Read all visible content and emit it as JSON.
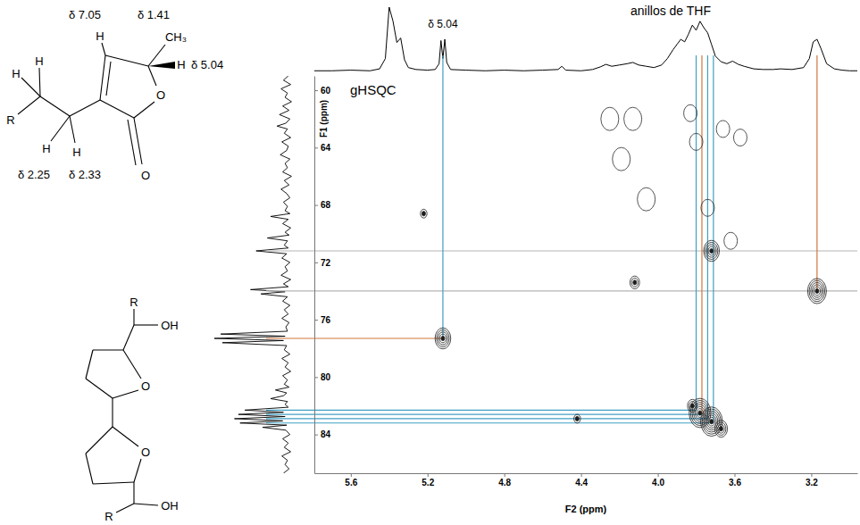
{
  "chart_data": {
    "type": "contour",
    "title": "gHSQC",
    "x_label": "F2 (ppm)",
    "y_label": "F1 (ppm)",
    "xlim": [
      5.79,
      2.96
    ],
    "xticks": [
      5.6,
      5.2,
      4.8,
      4.4,
      {
        "value": 4,
        "label": "4.0"
      },
      3.6,
      3.2
    ],
    "ylim": [
      59,
      86.7
    ],
    "yticks": [
      60,
      64,
      68,
      72,
      76,
      80,
      84
    ],
    "series": [
      {
        "x": [
          5.12,
          3.72,
          3.17,
          3.82,
          3.78,
          3.72,
          3.67,
          4.12,
          5.22,
          4.42
        ],
        "values": [
          77.3,
          71.2,
          74.0,
          82.0,
          82.5,
          83.1,
          83.6,
          73.4,
          68.6,
          82.9
        ],
        "sizes": [
          5,
          5,
          6,
          3,
          7,
          7,
          4,
          3,
          2,
          2
        ],
        "color": "#1e1e1e",
        "marker": "filled"
      },
      {
        "x": [
          4.25,
          4.13,
          4.19,
          4.06,
          3.83,
          3.8,
          3.66,
          3.74,
          3.62,
          3.57
        ],
        "values": [
          62.0,
          62.0,
          64.8,
          67.6,
          61.6,
          63.6,
          62.7,
          68.2,
          70.5,
          63.3
        ],
        "sizes": [
          2,
          2,
          2,
          2,
          1,
          1,
          1,
          1,
          1,
          1
        ],
        "color": "#2a2a2a",
        "marker": "open"
      }
    ],
    "spectrum_f2": {
      "x": [
        5.79,
        5.7,
        5.6,
        5.5,
        5.45,
        5.42,
        5.4,
        5.38,
        5.36,
        5.34,
        5.32,
        5.3,
        5.26,
        5.2,
        5.16,
        5.14,
        5.13,
        5.12,
        5.11,
        5.1,
        5.08,
        5.0,
        4.9,
        4.8,
        4.7,
        4.6,
        4.52,
        4.5,
        4.48,
        4.4,
        4.34,
        4.3,
        4.27,
        4.24,
        4.2,
        4.16,
        4.13,
        4.1,
        4.06,
        4.02,
        3.98,
        3.95,
        3.92,
        3.9,
        3.88,
        3.86,
        3.84,
        3.82,
        3.8,
        3.78,
        3.76,
        3.74,
        3.72,
        3.7,
        3.67,
        3.64,
        3.61,
        3.58,
        3.55,
        3.5,
        3.45,
        3.4,
        3.36,
        3.3,
        3.24,
        3.21,
        3.19,
        3.17,
        3.15,
        3.12,
        3.08,
        3.04,
        3.0,
        2.96
      ],
      "values": [
        1,
        1,
        2,
        1,
        4,
        20,
        100,
        78,
        45,
        52,
        18,
        6,
        3,
        2,
        3,
        12,
        48,
        20,
        50,
        14,
        3,
        2,
        1,
        2,
        1,
        2,
        3,
        8,
        2,
        1,
        3,
        7,
        11,
        8,
        10,
        12,
        14,
        10,
        8,
        6,
        10,
        20,
        34,
        42,
        50,
        46,
        58,
        72,
        64,
        78,
        68,
        60,
        42,
        24,
        15,
        12,
        16,
        11,
        8,
        4,
        3,
        3,
        4,
        3,
        6,
        20,
        46,
        50,
        36,
        12,
        4,
        2,
        1,
        1
      ],
      "ylim": [
        0,
        100
      ],
      "color": "#000000"
    },
    "spectrum_f1": {
      "y": [
        59.0,
        59.3,
        59.6,
        59.9,
        60.2,
        60.5,
        60.8,
        61.1,
        61.4,
        61.7,
        62.0,
        62.3,
        62.5,
        62.7,
        63.0,
        63.3,
        63.6,
        63.9,
        64.2,
        64.5,
        64.8,
        65.1,
        65.4,
        65.7,
        66.0,
        66.3,
        66.6,
        66.9,
        67.2,
        67.5,
        67.8,
        68.1,
        68.4,
        68.6,
        68.8,
        69.0,
        69.3,
        69.6,
        69.9,
        70.1,
        70.3,
        70.5,
        70.8,
        71.0,
        71.2,
        71.4,
        71.7,
        72.0,
        72.3,
        72.6,
        72.9,
        73.2,
        73.5,
        73.7,
        73.9,
        74.05,
        74.2,
        74.4,
        74.7,
        75.0,
        75.3,
        75.6,
        75.9,
        76.2,
        76.5,
        76.8,
        77.0,
        77.15,
        77.3,
        77.45,
        77.6,
        77.8,
        78.1,
        78.4,
        78.7,
        79.0,
        79.3,
        79.6,
        79.9,
        80.2,
        80.5,
        80.7,
        80.9,
        81.1,
        81.3,
        81.5,
        81.7,
        81.9,
        82.1,
        82.3,
        82.45,
        82.6,
        82.75,
        82.9,
        83.05,
        83.2,
        83.35,
        83.5,
        83.7,
        84.0,
        84.3,
        84.6,
        84.9,
        85.2,
        85.5,
        85.8,
        86.1,
        86.4,
        86.7
      ],
      "values": [
        8,
        14,
        5,
        17,
        9,
        12,
        4,
        15,
        7,
        19,
        6,
        11,
        22,
        9,
        13,
        5,
        16,
        8,
        10,
        18,
        6,
        12,
        9,
        15,
        4,
        13,
        7,
        17,
        10,
        6,
        14,
        9,
        12,
        6,
        30,
        8,
        15,
        5,
        12,
        7,
        34,
        9,
        13,
        8,
        48,
        10,
        16,
        6,
        12,
        9,
        17,
        5,
        14,
        8,
        55,
        12,
        42,
        9,
        15,
        6,
        13,
        8,
        16,
        7,
        11,
        9,
        92,
        12,
        100,
        14,
        90,
        10,
        13,
        6,
        16,
        8,
        12,
        5,
        15,
        9,
        13,
        7,
        24,
        10,
        14,
        30,
        9,
        12,
        8,
        62,
        14,
        70,
        12,
        75,
        15,
        68,
        10,
        40,
        11,
        6,
        15,
        8,
        13,
        5,
        16,
        9,
        12,
        7,
        14
      ],
      "xlim": [
        0,
        100
      ],
      "color": "#000000"
    },
    "vlines": [
      {
        "x": 5.12,
        "y": 77.3,
        "color": "#3f9fc4"
      },
      {
        "x": 3.8,
        "y": 82.3,
        "color": "#3f9fc4"
      },
      {
        "x": 3.77,
        "y": 82.6,
        "color": "#d2763e"
      },
      {
        "x": 3.74,
        "y": 82.9,
        "color": "#3f9fc4"
      },
      {
        "x": 3.71,
        "y": 83.2,
        "color": "#3f9fc4"
      },
      {
        "x": 3.17,
        "y": 74.0,
        "color": "#d2763e"
      }
    ],
    "hlines": [
      {
        "y": 71.2,
        "x": 2.96,
        "color": "#b5b5b5"
      },
      {
        "y": 74.0,
        "x": 2.96,
        "color": "#b5b5b5"
      },
      {
        "y": 77.3,
        "x": 5.12,
        "color": "#d2763e"
      },
      {
        "y": 82.3,
        "x": 3.8,
        "color": "#3f9fc4"
      },
      {
        "y": 82.6,
        "x": 3.77,
        "color": "#3f9fc4"
      },
      {
        "y": 82.9,
        "x": 3.74,
        "color": "#3f9fc4"
      },
      {
        "y": 83.2,
        "x": 3.71,
        "color": "#3f9fc4"
      }
    ],
    "annotations": [
      {
        "text": "anillos de THF"
      },
      {
        "text": "δ 5.04"
      }
    ]
  },
  "structures": [
    {
      "labels": [
        "δ 7.05",
        "δ 1.41",
        "H",
        "CH₃",
        "H",
        "δ 5.04",
        "O",
        "O",
        "R",
        "H",
        "H",
        "H",
        "H",
        "δ 2.25",
        "δ 2.33"
      ]
    },
    {
      "labels": [
        "R",
        "OH",
        "O",
        "O",
        "OH",
        "R"
      ]
    }
  ]
}
